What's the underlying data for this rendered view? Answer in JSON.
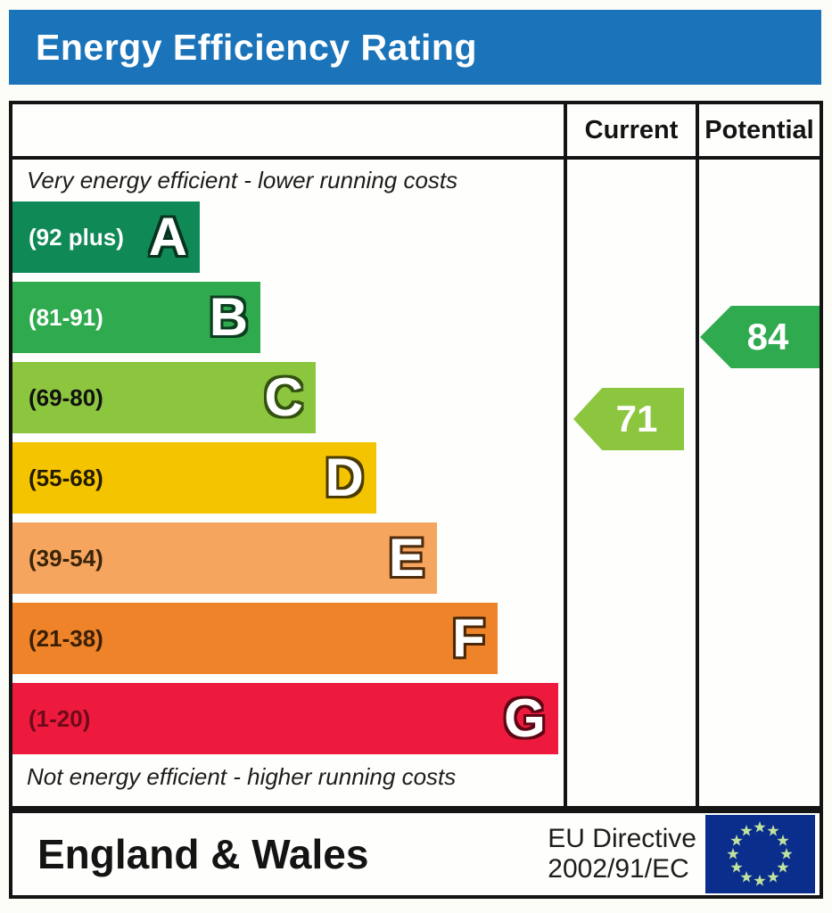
{
  "title": "Energy Efficiency Rating",
  "colors": {
    "title_bar_bg": "#1b74b9",
    "title_text": "#ffffff",
    "border": "#141414"
  },
  "table_header": {
    "current_label": "Current",
    "potential_label": "Potential"
  },
  "chart_data": {
    "type": "bar",
    "title": "Energy Efficiency Rating",
    "top_caption": "Very energy efficient - lower running costs",
    "bottom_caption": "Not energy efficient - higher running costs",
    "columns": [
      "Current",
      "Potential"
    ],
    "bands": [
      {
        "letter": "A",
        "range": "(92 plus)",
        "color": "#0f8a57",
        "label_color": "#ffffff",
        "letter_outline": "#07331f",
        "width_pct": 34
      },
      {
        "letter": "B",
        "range": "(81-91)",
        "color": "#2faa4f",
        "label_color": "#ffffff",
        "letter_outline": "#0b3d20",
        "width_pct": 45
      },
      {
        "letter": "C",
        "range": "(69-80)",
        "color": "#8cc63f",
        "label_color": "#111111",
        "letter_outline": "#335110",
        "width_pct": 55
      },
      {
        "letter": "D",
        "range": "(55-68)",
        "color": "#f5c400",
        "label_color": "#231b00",
        "letter_outline": "#4a3b00",
        "width_pct": 66
      },
      {
        "letter": "E",
        "range": "(39-54)",
        "color": "#f5a55e",
        "label_color": "#3a2409",
        "letter_outline": "#4f2c0c",
        "width_pct": 77
      },
      {
        "letter": "F",
        "range": "(21-38)",
        "color": "#ee8329",
        "label_color": "#3a1f04",
        "letter_outline": "#4a2806",
        "width_pct": 88
      },
      {
        "letter": "G",
        "range": "(1-20)",
        "color": "#ed1a3d",
        "label_color": "#6e0a1a",
        "letter_outline": "#5d0714",
        "width_pct": 99
      }
    ],
    "current": {
      "value": 71,
      "band": "C",
      "color": "#8cc63f"
    },
    "potential": {
      "value": 84,
      "band": "B",
      "color": "#2faa4f"
    }
  },
  "footer": {
    "region": "England & Wales",
    "directive_line1": "EU Directive",
    "directive_line2": "2002/91/EC",
    "eu_flag": {
      "bg": "#0b2d8c",
      "star_color": "#bfe29e"
    }
  }
}
